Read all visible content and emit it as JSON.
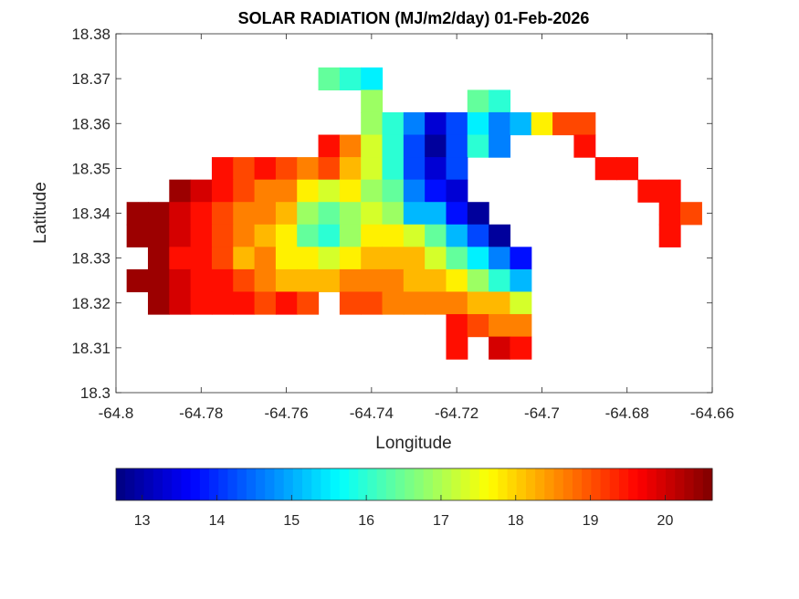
{
  "chart_data": {
    "type": "heatmap",
    "title": "SOLAR RADIATION (MJ/m2/day) 01-Feb-2026",
    "xlabel": "Longitude",
    "ylabel": "Latitude",
    "xlim": [
      -64.8,
      -64.66
    ],
    "ylim": [
      18.3,
      18.38
    ],
    "xticks": [
      "-64.8",
      "-64.78",
      "-64.76",
      "-64.74",
      "-64.72",
      "-64.7",
      "-64.68",
      "-64.66"
    ],
    "yticks": [
      "18.3",
      "18.31",
      "18.32",
      "18.33",
      "18.34",
      "18.35",
      "18.36",
      "18.37",
      "18.38"
    ],
    "colormap": "jet",
    "clim": [
      12.65,
      20.63
    ],
    "colorbar": {
      "location": "bottom",
      "ticks": [
        "13",
        "14",
        "15",
        "16",
        "17",
        "18",
        "19",
        "20"
      ]
    },
    "x": [
      -64.795,
      -64.79,
      -64.785,
      -64.78,
      -64.775,
      -64.77,
      -64.765,
      -64.76,
      -64.755,
      -64.75,
      -64.745,
      -64.74,
      -64.735,
      -64.73,
      -64.725,
      -64.72,
      -64.715,
      -64.71,
      -64.705,
      -64.7,
      -64.695,
      -64.69,
      -64.685,
      -64.68,
      -64.675,
      -64.67,
      -64.665
    ],
    "y": [
      18.37,
      18.365,
      18.36,
      18.355,
      18.35,
      18.345,
      18.34,
      18.335,
      18.33,
      18.325,
      18.32,
      18.315,
      18.31
    ],
    "z": [
      [
        null,
        null,
        null,
        null,
        null,
        null,
        null,
        null,
        null,
        16.2,
        15.8,
        15.6,
        null,
        null,
        null,
        null,
        null,
        null,
        null,
        null,
        null,
        null,
        null,
        null,
        null,
        null,
        null
      ],
      [
        null,
        null,
        null,
        null,
        null,
        null,
        null,
        null,
        null,
        null,
        null,
        16.8,
        null,
        null,
        null,
        null,
        16.5,
        16.0,
        null,
        null,
        null,
        null,
        null,
        null,
        null,
        null,
        null
      ],
      [
        null,
        null,
        null,
        null,
        null,
        null,
        null,
        null,
        null,
        null,
        null,
        17.0,
        15.8,
        14.5,
        13.2,
        14.0,
        15.5,
        14.8,
        15.3,
        17.8,
        19.0,
        19.2,
        null,
        null,
        null,
        null,
        null
      ],
      [
        null,
        null,
        null,
        null,
        null,
        null,
        null,
        null,
        null,
        19.3,
        18.5,
        17.5,
        16.0,
        14.0,
        12.9,
        14.2,
        15.8,
        14.5,
        null,
        null,
        null,
        19.5,
        null,
        null,
        null,
        null,
        null
      ],
      [
        null,
        null,
        null,
        null,
        19.3,
        19.0,
        19.3,
        19.0,
        18.5,
        19.0,
        18.2,
        17.3,
        15.8,
        14.0,
        13.5,
        14.0,
        null,
        null,
        null,
        null,
        null,
        null,
        19.3,
        19.3,
        null,
        null,
        null
      ],
      [
        null,
        null,
        20.3,
        20.0,
        19.6,
        19.0,
        18.5,
        18.7,
        17.6,
        17.5,
        17.8,
        17.0,
        16.2,
        14.5,
        13.8,
        13.5,
        null,
        null,
        null,
        null,
        null,
        null,
        null,
        null,
        19.4,
        19.5,
        null
      ],
      [
        20.5,
        20.5,
        20.0,
        19.6,
        19.2,
        18.8,
        18.6,
        18.2,
        16.8,
        16.2,
        17.0,
        17.5,
        16.8,
        15.2,
        15.0,
        13.8,
        13.0,
        null,
        null,
        null,
        null,
        null,
        null,
        null,
        null,
        19.5,
        19.2
      ],
      [
        20.5,
        20.3,
        19.8,
        19.5,
        19.1,
        18.8,
        18.3,
        17.6,
        16.6,
        15.8,
        16.8,
        17.8,
        17.8,
        17.5,
        16.5,
        15.2,
        14.0,
        13.0,
        null,
        null,
        null,
        null,
        null,
        null,
        null,
        19.5,
        null
      ],
      [
        null,
        20.5,
        19.7,
        19.6,
        19.2,
        18.4,
        18.6,
        17.8,
        17.6,
        17.4,
        17.8,
        18.2,
        18.3,
        18.0,
        17.3,
        16.5,
        15.5,
        14.5,
        13.8,
        null,
        null,
        null,
        null,
        null,
        null,
        null,
        null
      ],
      [
        20.6,
        20.4,
        19.8,
        19.5,
        19.4,
        19.0,
        18.6,
        18.3,
        18.1,
        18.0,
        18.5,
        18.6,
        18.5,
        18.3,
        18.0,
        17.6,
        17.0,
        16.0,
        15.3,
        null,
        null,
        null,
        null,
        null,
        null,
        null,
        null
      ],
      [
        null,
        20.2,
        19.9,
        19.6,
        19.6,
        19.4,
        19.2,
        19.3,
        19.0,
        null,
        19.0,
        19.0,
        18.8,
        18.8,
        18.7,
        18.5,
        18.4,
        18.0,
        17.5,
        null,
        null,
        null,
        null,
        null,
        null,
        null,
        null
      ],
      [
        null,
        null,
        null,
        null,
        null,
        null,
        null,
        null,
        null,
        null,
        null,
        null,
        null,
        null,
        null,
        19.3,
        19.0,
        18.8,
        18.7,
        null,
        null,
        null,
        null,
        null,
        null,
        null,
        null
      ],
      [
        null,
        null,
        null,
        null,
        null,
        null,
        null,
        null,
        null,
        null,
        null,
        null,
        null,
        null,
        null,
        19.5,
        null,
        19.8,
        19.5,
        null,
        null,
        null,
        null,
        null,
        null,
        null,
        null
      ]
    ]
  }
}
